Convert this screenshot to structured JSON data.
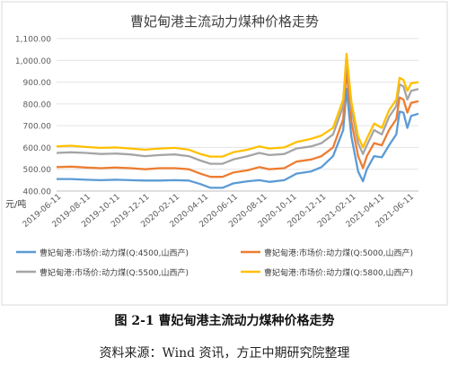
{
  "caption": "图 2-1  曹妃甸港主流动力煤种价格走势",
  "source": "资料来源：Wind 资讯，方正中期研究院整理",
  "chart_data": {
    "type": "line",
    "title": "曹妃甸港主流动力煤种价格走势",
    "ylabel": "元/吨",
    "ylim": [
      400,
      1100
    ],
    "y_ticks": [
      "400.00",
      "500.00",
      "600.00",
      "700.00",
      "800.00",
      "900.00",
      "1,000.00",
      "1,100.00"
    ],
    "x_range": [
      "2019-06-01",
      "2021-06-20"
    ],
    "x_ticks": [
      "2019-06-11",
      "2019-08-11",
      "2019-10-11",
      "2019-12-11",
      "2020-02-11",
      "2020-04-11",
      "2020-06-11",
      "2020-08-11",
      "2020-10-11",
      "2020-12-11",
      "2021-02-11",
      "2021-04-11",
      "2021-06-11"
    ],
    "grid": true,
    "legend": "bottom",
    "series": [
      {
        "name": "曹妃甸港:市场价:动力煤(Q:4500,山西产)",
        "color": "#5b9bd5",
        "points": [
          [
            "2019-06-01",
            455
          ],
          [
            "2019-07-01",
            455
          ],
          [
            "2019-08-01",
            452
          ],
          [
            "2019-09-01",
            450
          ],
          [
            "2019-10-01",
            452
          ],
          [
            "2019-11-01",
            450
          ],
          [
            "2019-12-01",
            448
          ],
          [
            "2020-01-01",
            448
          ],
          [
            "2020-02-01",
            450
          ],
          [
            "2020-03-01",
            448
          ],
          [
            "2020-03-25",
            432
          ],
          [
            "2020-04-15",
            415
          ],
          [
            "2020-05-10",
            415
          ],
          [
            "2020-06-01",
            435
          ],
          [
            "2020-07-01",
            445
          ],
          [
            "2020-07-25",
            450
          ],
          [
            "2020-08-15",
            442
          ],
          [
            "2020-09-15",
            450
          ],
          [
            "2020-10-10",
            480
          ],
          [
            "2020-11-10",
            490
          ],
          [
            "2020-12-01",
            510
          ],
          [
            "2020-12-25",
            560
          ],
          [
            "2021-01-15",
            680
          ],
          [
            "2021-01-22",
            870
          ],
          [
            "2021-02-01",
            650
          ],
          [
            "2021-02-15",
            490
          ],
          [
            "2021-02-25",
            445
          ],
          [
            "2021-03-05",
            500
          ],
          [
            "2021-03-20",
            560
          ],
          [
            "2021-04-05",
            555
          ],
          [
            "2021-04-20",
            610
          ],
          [
            "2021-05-05",
            660
          ],
          [
            "2021-05-12",
            765
          ],
          [
            "2021-05-20",
            760
          ],
          [
            "2021-05-28",
            690
          ],
          [
            "2021-06-05",
            745
          ],
          [
            "2021-06-20",
            755
          ]
        ]
      },
      {
        "name": "曹妃甸港:市场价:动力煤(Q:5000,山西产)",
        "color": "#ed7d31",
        "points": [
          [
            "2019-06-01",
            510
          ],
          [
            "2019-07-01",
            512
          ],
          [
            "2019-08-01",
            508
          ],
          [
            "2019-09-01",
            505
          ],
          [
            "2019-10-01",
            508
          ],
          [
            "2019-11-01",
            505
          ],
          [
            "2019-12-01",
            500
          ],
          [
            "2020-01-01",
            505
          ],
          [
            "2020-02-01",
            505
          ],
          [
            "2020-03-01",
            500
          ],
          [
            "2020-03-25",
            480
          ],
          [
            "2020-04-15",
            465
          ],
          [
            "2020-05-10",
            465
          ],
          [
            "2020-06-01",
            485
          ],
          [
            "2020-07-01",
            495
          ],
          [
            "2020-07-25",
            510
          ],
          [
            "2020-08-15",
            500
          ],
          [
            "2020-09-15",
            505
          ],
          [
            "2020-10-10",
            535
          ],
          [
            "2020-11-10",
            545
          ],
          [
            "2020-12-01",
            560
          ],
          [
            "2020-12-25",
            600
          ],
          [
            "2021-01-15",
            730
          ],
          [
            "2021-01-22",
            960
          ],
          [
            "2021-02-01",
            720
          ],
          [
            "2021-02-15",
            560
          ],
          [
            "2021-02-25",
            505
          ],
          [
            "2021-03-05",
            560
          ],
          [
            "2021-03-20",
            620
          ],
          [
            "2021-04-05",
            610
          ],
          [
            "2021-04-20",
            680
          ],
          [
            "2021-05-05",
            730
          ],
          [
            "2021-05-12",
            830
          ],
          [
            "2021-05-20",
            820
          ],
          [
            "2021-05-28",
            760
          ],
          [
            "2021-06-05",
            805
          ],
          [
            "2021-06-20",
            812
          ]
        ]
      },
      {
        "name": "曹妃甸港:市场价:动力煤(Q:5500,山西产)",
        "color": "#a5a5a5",
        "points": [
          [
            "2019-06-01",
            575
          ],
          [
            "2019-07-01",
            578
          ],
          [
            "2019-08-01",
            575
          ],
          [
            "2019-09-01",
            570
          ],
          [
            "2019-10-01",
            572
          ],
          [
            "2019-11-01",
            568
          ],
          [
            "2019-12-01",
            560
          ],
          [
            "2020-01-01",
            565
          ],
          [
            "2020-02-01",
            568
          ],
          [
            "2020-03-01",
            560
          ],
          [
            "2020-03-25",
            540
          ],
          [
            "2020-04-15",
            525
          ],
          [
            "2020-05-10",
            525
          ],
          [
            "2020-06-01",
            545
          ],
          [
            "2020-07-01",
            560
          ],
          [
            "2020-07-25",
            575
          ],
          [
            "2020-08-15",
            565
          ],
          [
            "2020-09-15",
            570
          ],
          [
            "2020-10-10",
            595
          ],
          [
            "2020-11-10",
            605
          ],
          [
            "2020-12-01",
            620
          ],
          [
            "2020-12-25",
            660
          ],
          [
            "2021-01-15",
            790
          ],
          [
            "2021-01-22",
            1020
          ],
          [
            "2021-02-01",
            780
          ],
          [
            "2021-02-15",
            620
          ],
          [
            "2021-02-25",
            570
          ],
          [
            "2021-03-05",
            610
          ],
          [
            "2021-03-20",
            680
          ],
          [
            "2021-04-05",
            660
          ],
          [
            "2021-04-20",
            740
          ],
          [
            "2021-05-05",
            790
          ],
          [
            "2021-05-12",
            890
          ],
          [
            "2021-05-20",
            880
          ],
          [
            "2021-05-28",
            820
          ],
          [
            "2021-06-05",
            860
          ],
          [
            "2021-06-20",
            868
          ]
        ]
      },
      {
        "name": "曹妃甸港:市场价:动力煤(Q:5800,山西产)",
        "color": "#ffc000",
        "points": [
          [
            "2019-06-01",
            605
          ],
          [
            "2019-07-01",
            608
          ],
          [
            "2019-08-01",
            602
          ],
          [
            "2019-09-01",
            598
          ],
          [
            "2019-10-01",
            600
          ],
          [
            "2019-11-01",
            595
          ],
          [
            "2019-12-01",
            590
          ],
          [
            "2020-01-01",
            595
          ],
          [
            "2020-02-01",
            598
          ],
          [
            "2020-03-01",
            590
          ],
          [
            "2020-03-25",
            570
          ],
          [
            "2020-04-15",
            558
          ],
          [
            "2020-05-10",
            558
          ],
          [
            "2020-06-01",
            578
          ],
          [
            "2020-07-01",
            590
          ],
          [
            "2020-07-25",
            605
          ],
          [
            "2020-08-15",
            595
          ],
          [
            "2020-09-15",
            600
          ],
          [
            "2020-10-10",
            625
          ],
          [
            "2020-11-10",
            640
          ],
          [
            "2020-12-01",
            655
          ],
          [
            "2020-12-25",
            690
          ],
          [
            "2021-01-15",
            820
          ],
          [
            "2021-01-22",
            1030
          ],
          [
            "2021-02-01",
            810
          ],
          [
            "2021-02-15",
            650
          ],
          [
            "2021-02-25",
            600
          ],
          [
            "2021-03-05",
            640
          ],
          [
            "2021-03-20",
            710
          ],
          [
            "2021-04-05",
            690
          ],
          [
            "2021-04-20",
            770
          ],
          [
            "2021-05-05",
            820
          ],
          [
            "2021-05-12",
            920
          ],
          [
            "2021-05-20",
            910
          ],
          [
            "2021-05-28",
            860
          ],
          [
            "2021-06-05",
            895
          ],
          [
            "2021-06-20",
            900
          ]
        ]
      }
    ]
  }
}
